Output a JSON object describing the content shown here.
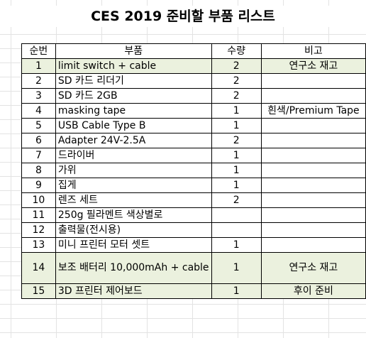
{
  "title": "CES 2019 준비할 부품 리스트",
  "columns": [
    "순번",
    "부품",
    "수량",
    "비고"
  ],
  "rows": [
    {
      "no": "1",
      "item": "limit switch + cable",
      "qty": "2",
      "note": "연구소 재고"
    },
    {
      "no": "2",
      "item": "SD 카드 리더기",
      "qty": "2",
      "note": ""
    },
    {
      "no": "3",
      "item": "SD 카드 2GB",
      "qty": "2",
      "note": ""
    },
    {
      "no": "4",
      "item": "masking tape",
      "qty": "1",
      "note": "흰색/Premium Tape"
    },
    {
      "no": "5",
      "item": "USB Cable Type B",
      "qty": "1",
      "note": ""
    },
    {
      "no": "6",
      "item": "Adapter 24V-2.5A",
      "qty": "2",
      "note": ""
    },
    {
      "no": "7",
      "item": "드라이버",
      "qty": "1",
      "note": ""
    },
    {
      "no": "8",
      "item": "가위",
      "qty": "1",
      "note": ""
    },
    {
      "no": "9",
      "item": "집게",
      "qty": "1",
      "note": ""
    },
    {
      "no": "10",
      "item": "렌즈 세트",
      "qty": "2",
      "note": ""
    },
    {
      "no": "11",
      "item": "250g 필라멘트 색상별로",
      "qty": "",
      "note": ""
    },
    {
      "no": "12",
      "item": "출력물(전시용)",
      "qty": "",
      "note": ""
    },
    {
      "no": "13",
      "item": "미니 프린터 모터 셋트",
      "qty": "1",
      "note": ""
    },
    {
      "no": "14",
      "item": "보조 배터리 10,000mAh + cable",
      "qty": "1",
      "note": "연구소 재고"
    },
    {
      "no": "15",
      "item": "3D 프린터 제어보드",
      "qty": "1",
      "note": "후이 준비"
    }
  ]
}
